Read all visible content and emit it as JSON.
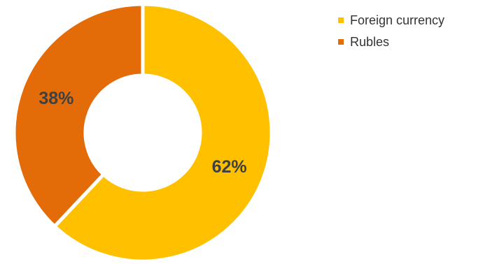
{
  "chart_data": {
    "type": "pie",
    "title": "",
    "donut": true,
    "start_angle_deg": 0,
    "slices": [
      {
        "name": "Foreign currency",
        "value": 62,
        "label": "62%",
        "color": "#FFC000"
      },
      {
        "name": "Rubles",
        "value": 38,
        "label": "38%",
        "color": "#E36C09"
      }
    ],
    "legend": {
      "position": "top-right",
      "items": [
        {
          "label": "Foreign currency",
          "color": "#FFC000"
        },
        {
          "label": "Rubles",
          "color": "#E36C09"
        }
      ]
    }
  }
}
